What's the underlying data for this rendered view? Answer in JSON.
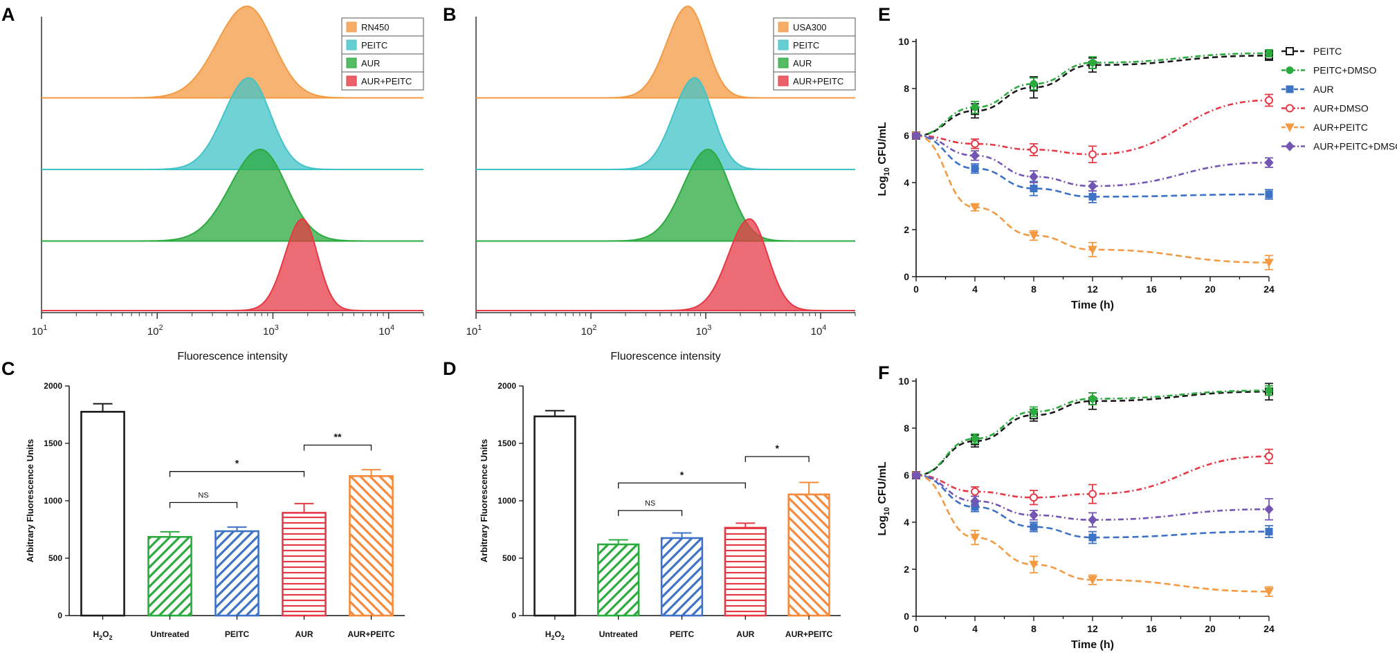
{
  "panel_labels": [
    "A",
    "B",
    "C",
    "D",
    "E",
    "F"
  ],
  "colors": {
    "orange": "#F39A43",
    "cyan": "#41C3C8",
    "green": "#2BAA3E",
    "red": "#E63946",
    "blue": "#3E72C4",
    "purple": "#7356B4",
    "black": "#1a1a1a",
    "light_orange": "#F58A3C"
  },
  "chart_data": [
    {
      "panel": "A",
      "type": "area",
      "title": "",
      "xlabel": "Fluorescence intensity",
      "ylabel": "",
      "xscale": "log",
      "xlim": [
        10,
        20000
      ],
      "x_ticks": [
        "10^1",
        "10^2",
        "10^3",
        "10^4"
      ],
      "legend_position": "top-right",
      "series": [
        {
          "name": "RN450",
          "color": "orange",
          "peak": 600,
          "width": 0.24
        },
        {
          "name": "PEITC",
          "color": "cyan",
          "peak": 620,
          "width": 0.2
        },
        {
          "name": "AUR",
          "color": "green",
          "peak": 780,
          "width": 0.24
        },
        {
          "name": "AUR+PEITC",
          "color": "red",
          "peak": 1800,
          "width": 0.14
        }
      ]
    },
    {
      "panel": "B",
      "type": "area",
      "title": "",
      "xlabel": "Fluorescence intensity",
      "ylabel": "",
      "xscale": "log",
      "xlim": [
        10,
        20000
      ],
      "x_ticks": [
        "10^1",
        "10^2",
        "10^3",
        "10^4"
      ],
      "legend_position": "top-right",
      "series": [
        {
          "name": "USA300",
          "color": "orange",
          "peak": 700,
          "width": 0.17
        },
        {
          "name": "PEITC",
          "color": "cyan",
          "peak": 800,
          "width": 0.17
        },
        {
          "name": "AUR",
          "color": "green",
          "peak": 1050,
          "width": 0.2
        },
        {
          "name": "AUR+PEITC",
          "color": "red",
          "peak": 2400,
          "width": 0.17
        }
      ]
    },
    {
      "panel": "C",
      "type": "bar",
      "title": "",
      "xlabel": "",
      "ylabel": "Arbitrary Fluorescence Units",
      "ylim": [
        0,
        2000
      ],
      "y_ticks": [
        0,
        500,
        1000,
        1500,
        2000
      ],
      "categories": [
        "H2O2",
        "Untreated",
        "PEITC",
        "AUR",
        "AUR+PEITC"
      ],
      "values": [
        1775,
        685,
        735,
        895,
        1215
      ],
      "errors": [
        70,
        45,
        35,
        80,
        55
      ],
      "patterns": [
        "none",
        "diag-up",
        "diag-up",
        "horizontal",
        "diag-down"
      ],
      "bar_colors": [
        "black",
        "green",
        "blue",
        "red",
        "light_orange"
      ],
      "significance": [
        {
          "from": 1,
          "to": 2,
          "label": "NS",
          "y": 985
        },
        {
          "from": 1,
          "to": 3,
          "label": "*",
          "y": 1255
        },
        {
          "from": 3,
          "to": 4,
          "label": "**",
          "y": 1485
        }
      ]
    },
    {
      "panel": "D",
      "type": "bar",
      "title": "",
      "xlabel": "",
      "ylabel": "Arbitrary Fluorescence Units",
      "ylim": [
        0,
        2000
      ],
      "y_ticks": [
        0,
        500,
        1000,
        1500,
        2000
      ],
      "categories": [
        "H2O2",
        "Untreated",
        "PEITC",
        "AUR",
        "AUR+PEITC"
      ],
      "values": [
        1735,
        620,
        675,
        765,
        1055
      ],
      "errors": [
        50,
        40,
        45,
        40,
        105
      ],
      "patterns": [
        "none",
        "diag-up",
        "diag-up",
        "horizontal",
        "diag-down"
      ],
      "bar_colors": [
        "black",
        "green",
        "blue",
        "red",
        "light_orange"
      ],
      "significance": [
        {
          "from": 1,
          "to": 2,
          "label": "NS",
          "y": 915
        },
        {
          "from": 1,
          "to": 3,
          "label": "*",
          "y": 1155
        },
        {
          "from": 3,
          "to": 4,
          "label": "*",
          "y": 1385
        }
      ]
    },
    {
      "panel": "E",
      "type": "line",
      "title": "",
      "xlabel": "Time (h)",
      "ylabel": "Log10 CFU/mL",
      "xlim": [
        0,
        24
      ],
      "ylim": [
        0,
        10
      ],
      "x_ticks": [
        0,
        4,
        8,
        12,
        16,
        20,
        24
      ],
      "y_ticks": [
        0,
        2,
        4,
        6,
        8,
        10
      ],
      "x": [
        0,
        4,
        8,
        12,
        24
      ],
      "legend_position": "right",
      "series": [
        {
          "name": "PEITC",
          "color": "black",
          "marker": "square-open",
          "dash": "8,5",
          "values": [
            6.0,
            7.05,
            8.05,
            9.0,
            9.4
          ],
          "errors": [
            0.1,
            0.3,
            0.45,
            0.3,
            0.2
          ]
        },
        {
          "name": "PEITC+DMSO",
          "color": "green",
          "marker": "circle-filled",
          "dash": "8,4,2,4",
          "values": [
            6.0,
            7.2,
            8.2,
            9.1,
            9.5
          ],
          "errors": [
            0.1,
            0.25,
            0.25,
            0.25,
            0.15
          ]
        },
        {
          "name": "AUR",
          "color": "blue",
          "marker": "square-filled",
          "dash": "9,5",
          "values": [
            6.0,
            4.6,
            3.75,
            3.4,
            3.5
          ],
          "errors": [
            0.1,
            0.2,
            0.3,
            0.25,
            0.2
          ]
        },
        {
          "name": "AUR+DMSO",
          "color": "red",
          "marker": "circle-open",
          "dash": "8,4,2,4",
          "values": [
            6.0,
            5.65,
            5.4,
            5.2,
            7.5
          ],
          "errors": [
            0.1,
            0.2,
            0.25,
            0.35,
            0.25
          ]
        },
        {
          "name": "AUR+PEITC",
          "color": "orange",
          "marker": "triangle-down",
          "dash": "9,5",
          "values": [
            6.0,
            2.95,
            1.75,
            1.15,
            0.6
          ],
          "errors": [
            0.1,
            0.15,
            0.2,
            0.3,
            0.3
          ]
        },
        {
          "name": "AUR+PEITC+DMSO",
          "color": "purple",
          "marker": "diamond",
          "dash": "8,4,2,4",
          "values": [
            6.0,
            5.15,
            4.25,
            3.85,
            4.85
          ],
          "errors": [
            0.1,
            0.2,
            0.25,
            0.2,
            0.2
          ]
        }
      ]
    },
    {
      "panel": "F",
      "type": "line",
      "title": "",
      "xlabel": "Time (h)",
      "ylabel": "Log10 CFU/mL",
      "xlim": [
        0,
        24
      ],
      "ylim": [
        0,
        10
      ],
      "x_ticks": [
        0,
        4,
        8,
        12,
        16,
        20,
        24
      ],
      "y_ticks": [
        0,
        2,
        4,
        6,
        8,
        10
      ],
      "x": [
        0,
        4,
        8,
        12,
        24
      ],
      "series": [
        {
          "name": "PEITC",
          "color": "black",
          "marker": "square-open",
          "dash": "8,5",
          "values": [
            6.0,
            7.45,
            8.55,
            9.15,
            9.55
          ],
          "errors": [
            0.1,
            0.25,
            0.25,
            0.35,
            0.35
          ]
        },
        {
          "name": "PEITC+DMSO",
          "color": "green",
          "marker": "circle-filled",
          "dash": "8,4,2,4",
          "values": [
            6.0,
            7.55,
            8.7,
            9.25,
            9.6
          ],
          "errors": [
            0.1,
            0.2,
            0.2,
            0.25,
            0.2
          ]
        },
        {
          "name": "AUR",
          "color": "blue",
          "marker": "square-filled",
          "dash": "9,5",
          "values": [
            6.0,
            4.65,
            3.8,
            3.35,
            3.6
          ],
          "errors": [
            0.1,
            0.2,
            0.2,
            0.25,
            0.25
          ]
        },
        {
          "name": "AUR+DMSO",
          "color": "red",
          "marker": "circle-open",
          "dash": "8,4,2,4",
          "values": [
            6.0,
            5.3,
            5.05,
            5.2,
            6.8
          ],
          "errors": [
            0.1,
            0.2,
            0.3,
            0.4,
            0.3
          ]
        },
        {
          "name": "AUR+PEITC",
          "color": "orange",
          "marker": "triangle-down",
          "dash": "9,5",
          "values": [
            6.0,
            3.35,
            2.2,
            1.55,
            1.05
          ],
          "errors": [
            0.1,
            0.3,
            0.35,
            0.2,
            0.2
          ]
        },
        {
          "name": "AUR+PEITC+DMSO",
          "color": "purple",
          "marker": "diamond",
          "dash": "8,4,2,4",
          "values": [
            6.0,
            4.9,
            4.3,
            4.1,
            4.55
          ],
          "errors": [
            0.1,
            0.2,
            0.2,
            0.3,
            0.45
          ]
        }
      ]
    }
  ]
}
